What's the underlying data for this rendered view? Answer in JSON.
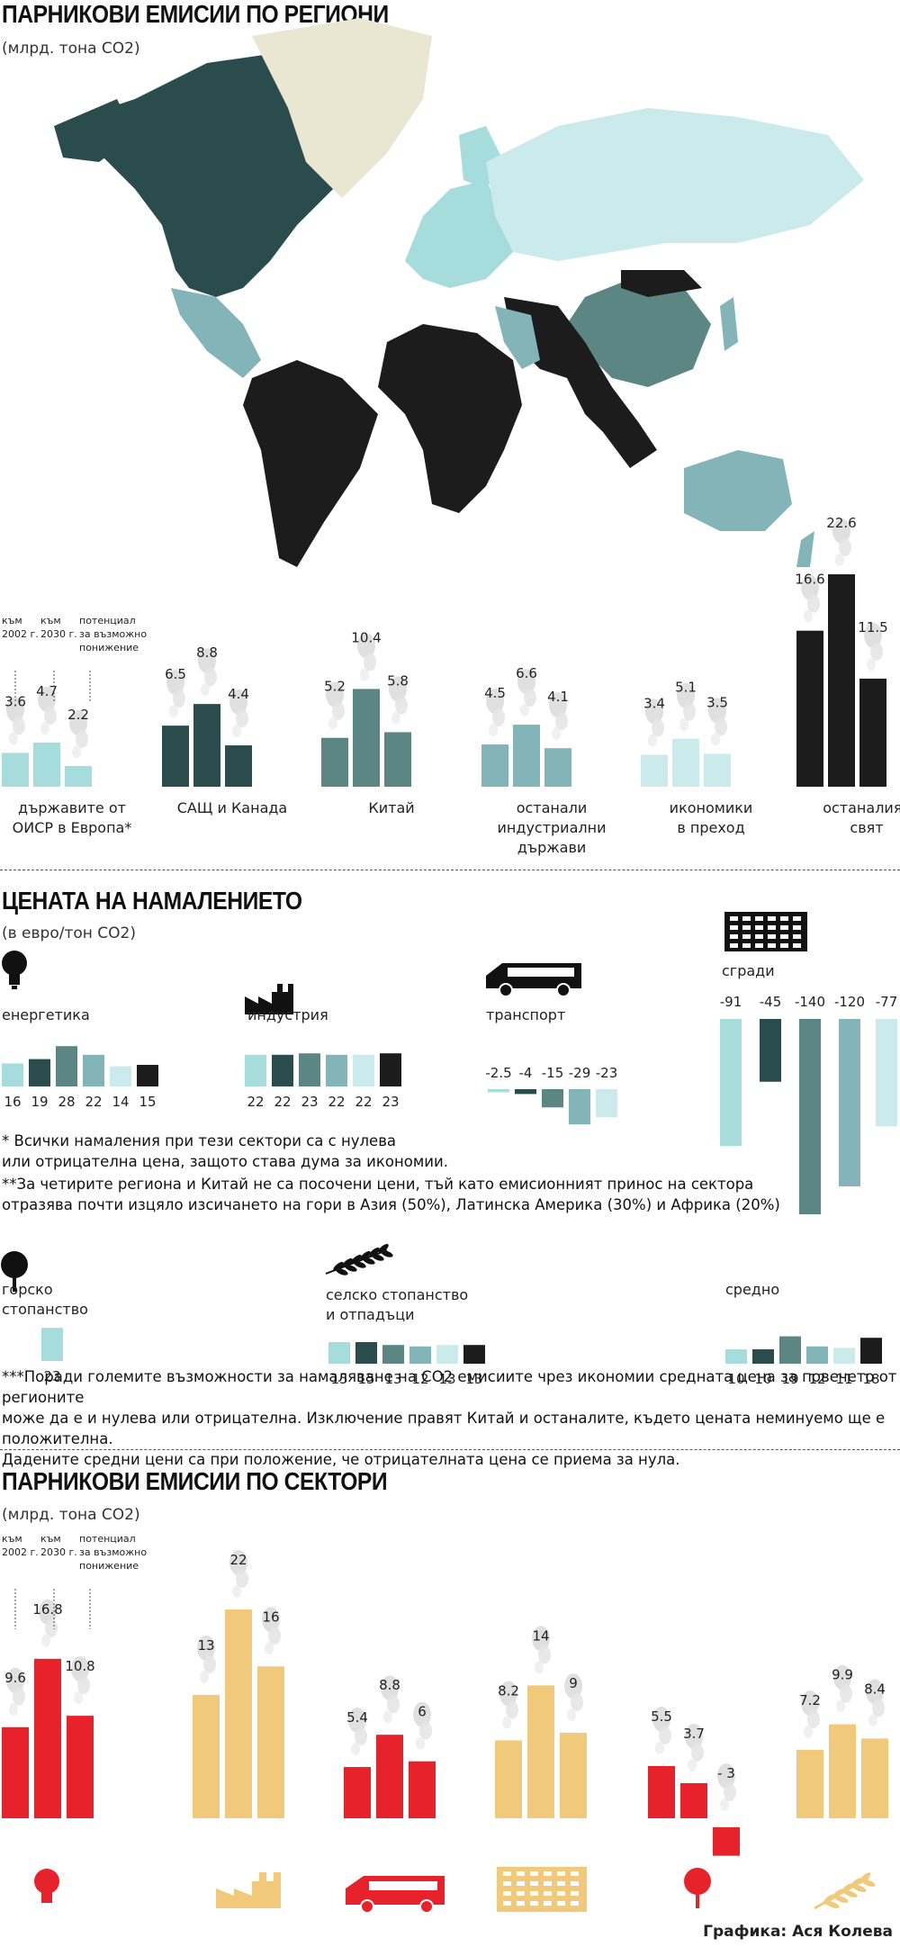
{
  "colors": {
    "oecd_europe": "#a6dcdc",
    "usa_canada": "#2b4c4c",
    "china": "#5b8683",
    "other_industrial": "#83b5b8",
    "transition": "#cbeaec",
    "rest_world": "#1c1c1c",
    "greenland": "#e9e6d2",
    "red": "#e8222b",
    "tan": "#f0c97a"
  },
  "section1": {
    "title": "ПАРНИКОВИ ЕМИСИИ ПО РЕГИОНИ",
    "unit": "(млрд. тона CO2)",
    "legend": {
      "y2002": "към\n2002 г.",
      "y2030": "към\n2030 г.",
      "potential": "потенциал\nза възможно\nпонижение"
    }
  },
  "region_chart_data": {
    "type": "bar",
    "series_labels": [
      "към 2002 г.",
      "към 2030 г.",
      "потенциал за възможно понижение"
    ],
    "groups": [
      {
        "label": "държавите от\nОИСР в Европа*",
        "values": [
          3.6,
          4.7,
          2.2
        ],
        "value_labels": [
          "3.6",
          "4.7",
          "2.2"
        ],
        "color": "oecd_europe"
      },
      {
        "label": "САЩ и Канада",
        "values": [
          6.5,
          8.8,
          4.4
        ],
        "value_labels": [
          "6.5",
          "8.8",
          "4.4"
        ],
        "color": "usa_canada"
      },
      {
        "label": "Китай",
        "values": [
          5.2,
          10.4,
          5.8
        ],
        "value_labels": [
          "5.2",
          "10.4",
          "5.8"
        ],
        "color": "china"
      },
      {
        "label": "останали индустриални\nдържави",
        "values": [
          4.5,
          6.6,
          4.1
        ],
        "value_labels": [
          "4.5",
          "6.6",
          "4.1"
        ],
        "color": "other_industrial"
      },
      {
        "label": "икономики\nв преход",
        "values": [
          3.4,
          5.1,
          3.5
        ],
        "value_labels": [
          "3.4",
          "5.1",
          "3.5"
        ],
        "color": "transition"
      },
      {
        "label": "останалият\nсвят",
        "values": [
          16.6,
          22.6,
          11.5
        ],
        "value_labels": [
          "16.6",
          "22.6",
          "11.5"
        ],
        "color": "rest_world"
      }
    ]
  },
  "section2": {
    "title": "ЦЕНАТА НА НАМАЛЕНИЕТО",
    "unit": "(в евро/тон CO2)",
    "note1": "* Всички намаления при тези сектори са с нулева\nили отрицателна цена, защото става дума за икономии.",
    "note2": "**За четирите региона и Китай не са посочени цени, тъй като емисионният принос на сектора\nотразява почти изцяло изсичането на гори в Азия (50%), Латинска Америка (30%) и Африка (20%)",
    "note3": "***Поради големите възможности за намаляване на CO2 емисиите чрез икономии средната цена за повечето от регионите\nможе да е и нулева или отрицателна. Изключение правят Китай и останалите, където цената неминуемо ще е положителна.\nДадените средни цени са при положение, че отрицателната цена се приема за нула."
  },
  "cost_chart_data": {
    "type": "bar",
    "region_colors": [
      "oecd_europe",
      "usa_canada",
      "china",
      "other_industrial",
      "transition",
      "rest_world"
    ],
    "sectors": [
      {
        "label": "енергетика",
        "icon": "lightbulb-icon",
        "values": [
          16,
          19,
          28,
          22,
          14,
          15
        ],
        "value_labels": [
          "16",
          "19",
          "28",
          "22",
          "14",
          "15"
        ]
      },
      {
        "label": "индустрия",
        "icon": "factory-icon",
        "values": [
          22,
          22,
          23,
          22,
          22,
          23
        ],
        "value_labels": [
          "22",
          "22",
          "23",
          "22",
          "22",
          "23"
        ]
      },
      {
        "label": "транспорт",
        "icon": "van-icon",
        "values": [
          -2.5,
          -4,
          -15,
          -29,
          -23
        ],
        "value_labels": [
          "-2.5",
          "-4",
          "-15",
          "-29",
          "-23"
        ]
      },
      {
        "label": "сгради",
        "icon": "building-icon",
        "values": [
          -91,
          -45,
          -140,
          -120,
          -77
        ],
        "value_labels": [
          "-91",
          "-45",
          "-140",
          "-120",
          "-77"
        ]
      },
      {
        "label": "горско\nстопанство",
        "icon": "tree-icon",
        "values": [
          23
        ],
        "value_labels": [
          "23"
        ]
      },
      {
        "label": "селско стопанство\nи отпадъци",
        "icon": "wheat-icon",
        "values": [
          15,
          15,
          13,
          12,
          13,
          13
        ],
        "value_labels": [
          "15",
          "15",
          "13",
          "12",
          "13",
          "13"
        ]
      },
      {
        "label": "средно",
        "icon": "",
        "values": [
          10,
          10,
          19,
          12,
          11,
          18
        ],
        "value_labels": [
          "10",
          "10",
          "19",
          "12",
          "11",
          "18"
        ]
      }
    ]
  },
  "section3": {
    "title": "ПАРНИКОВИ ЕМИСИИ ПО СЕКТОРИ",
    "unit": "(млрд. тона CO2)",
    "legend": {
      "y2002": "към\n2002 г.",
      "y2030": "към\n2030 г.",
      "potential": "потенциал\nза възможно\nпонижение"
    }
  },
  "sector_chart_data": {
    "type": "bar",
    "groups": [
      {
        "icon": "lightbulb-icon",
        "values": [
          9.6,
          16.8,
          10.8
        ],
        "value_labels": [
          "9.6",
          "16.8",
          "10.8"
        ],
        "color": "red"
      },
      {
        "icon": "factory-icon",
        "values": [
          13,
          22,
          16
        ],
        "value_labels": [
          "13",
          "22",
          "16"
        ],
        "color": "tan"
      },
      {
        "icon": "van-icon",
        "values": [
          5.4,
          8.8,
          6
        ],
        "value_labels": [
          "5.4",
          "8.8",
          "6"
        ],
        "color": "red"
      },
      {
        "icon": "building-icon",
        "values": [
          8.2,
          14,
          9
        ],
        "value_labels": [
          "8.2",
          "14",
          "9"
        ],
        "color": "tan"
      },
      {
        "icon": "tree-icon",
        "values": [
          5.5,
          3.7,
          -3
        ],
        "value_labels": [
          "5.5",
          "3.7",
          "- 3"
        ],
        "color": "red"
      },
      {
        "icon": "wheat-icon",
        "values": [
          7.2,
          9.9,
          8.4
        ],
        "value_labels": [
          "7.2",
          "9.9",
          "8.4"
        ],
        "color": "tan"
      }
    ]
  },
  "credit": "Графика: Ася Колева"
}
